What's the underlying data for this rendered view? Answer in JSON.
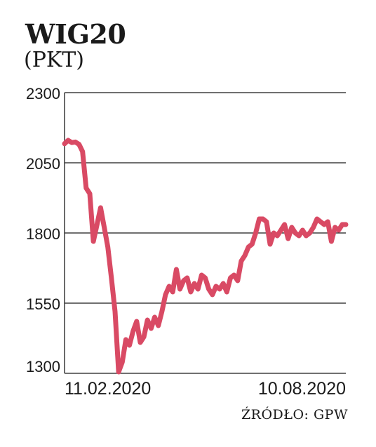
{
  "chart_data": {
    "type": "line",
    "title": "WIG20",
    "subtitle": "(PKT)",
    "source": "ŹRÓDŁO: GPW",
    "ylim": [
      1300,
      2300
    ],
    "yticks": [
      "2300",
      "2050",
      "1800",
      "1550",
      "1300"
    ],
    "ytick_values": [
      2300,
      2050,
      1800,
      1550,
      1300
    ],
    "xtick_labels": [
      "11.02.2020",
      "10.08.2020"
    ],
    "grid": true,
    "color": "#d94a64",
    "series": [
      {
        "values": [
          2118,
          2130,
          2122,
          2124,
          2116,
          2090,
          1960,
          1940,
          1770,
          1830,
          1890,
          1820,
          1750,
          1640,
          1520,
          1305,
          1340,
          1420,
          1400,
          1450,
          1485,
          1410,
          1430,
          1490,
          1460,
          1500,
          1470,
          1520,
          1580,
          1610,
          1590,
          1670,
          1600,
          1630,
          1640,
          1590,
          1620,
          1600,
          1650,
          1640,
          1600,
          1580,
          1610,
          1600,
          1620,
          1590,
          1640,
          1650,
          1630,
          1700,
          1720,
          1750,
          1760,
          1800,
          1850,
          1850,
          1840,
          1760,
          1800,
          1790,
          1810,
          1830,
          1780,
          1820,
          1800,
          1790,
          1810,
          1790,
          1800,
          1820,
          1850,
          1840,
          1830,
          1840,
          1770,
          1820,
          1810,
          1830,
          1830
        ]
      }
    ]
  }
}
